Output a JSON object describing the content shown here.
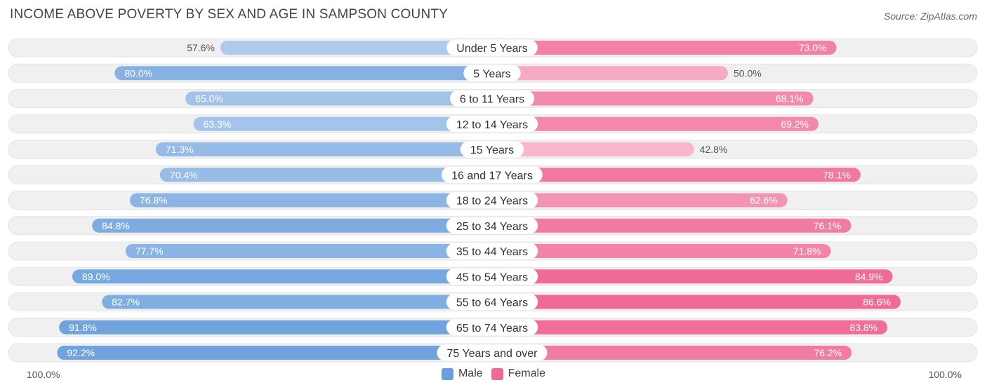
{
  "title": "INCOME ABOVE POVERTY BY SEX AND AGE IN SAMPSON COUNTY",
  "source": "Source: ZipAtlas.com",
  "axis": {
    "left_label": "100.0%",
    "right_label": "100.0%"
  },
  "legend": {
    "male_label": "Male",
    "female_label": "Female"
  },
  "colors": {
    "male": "#6a9fdb",
    "female": "#f06a95",
    "track": "#f0f0f0",
    "label_bg": "#ffffff"
  },
  "chart_data": {
    "type": "bar",
    "orientation": "diverging-horizontal",
    "title": "INCOME ABOVE POVERTY BY SEX AND AGE IN SAMPSON COUNTY",
    "categories": [
      "Under 5 Years",
      "5 Years",
      "6 to 11 Years",
      "12 to 14 Years",
      "15 Years",
      "16 and 17 Years",
      "18 to 24 Years",
      "25 to 34 Years",
      "35 to 44 Years",
      "45 to 54 Years",
      "55 to 64 Years",
      "65 to 74 Years",
      "75 Years and over"
    ],
    "series": [
      {
        "name": "Male",
        "values": [
          57.6,
          80.0,
          65.0,
          63.3,
          71.3,
          70.4,
          76.8,
          84.8,
          77.7,
          89.0,
          82.7,
          91.8,
          92.2
        ],
        "labels": [
          "57.6%",
          "80.0%",
          "65.0%",
          "63.3%",
          "71.3%",
          "70.4%",
          "76.8%",
          "84.8%",
          "77.7%",
          "89.0%",
          "82.7%",
          "91.8%",
          "92.2%"
        ]
      },
      {
        "name": "Female",
        "values": [
          73.0,
          50.0,
          68.1,
          69.2,
          42.8,
          78.1,
          62.6,
          76.1,
          71.8,
          84.9,
          86.6,
          83.8,
          76.2
        ],
        "labels": [
          "73.0%",
          "50.0%",
          "68.1%",
          "69.2%",
          "42.8%",
          "78.1%",
          "62.6%",
          "76.1%",
          "71.8%",
          "84.9%",
          "86.6%",
          "83.8%",
          "76.2%"
        ]
      }
    ],
    "xlim": [
      -100,
      100
    ],
    "legend_position": "bottom-center"
  }
}
